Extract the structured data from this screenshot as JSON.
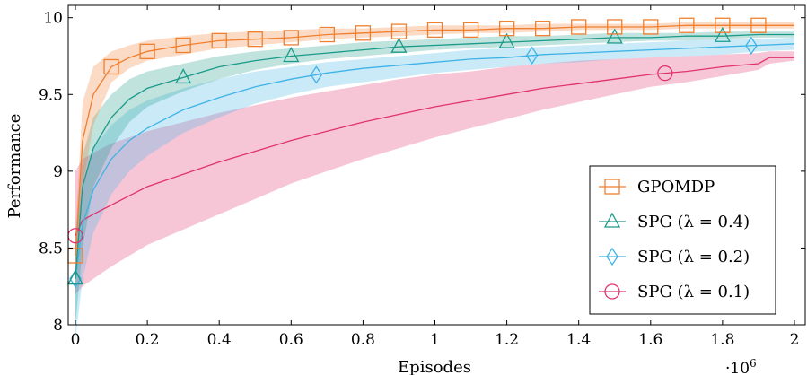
{
  "chart_data": {
    "type": "line",
    "title": "",
    "xlabel": "Episodes",
    "ylabel": "Performance",
    "x_multiplier_label": "·10",
    "x_multiplier_exp": "6",
    "xlim": [
      -0.02,
      2.03
    ],
    "ylim": [
      8,
      10.08
    ],
    "xticks": [
      0,
      0.2,
      0.4,
      0.6,
      0.8,
      1,
      1.2,
      1.4,
      1.6,
      1.8,
      2
    ],
    "xtick_labels": [
      "0",
      "0.2",
      "0.4",
      "0.6",
      "0.8",
      "1",
      "1.2",
      "1.4",
      "1.6",
      "1.8",
      "2"
    ],
    "yticks": [
      8,
      8.5,
      9,
      9.5,
      10
    ],
    "ytick_labels": [
      "8",
      "8.5",
      "9",
      "9.5",
      "10"
    ],
    "grid": false,
    "legend_position": "bottom-right",
    "series": [
      {
        "name": "GPOMDP",
        "color": "#f07f2f",
        "marker": "square",
        "x": [
          0,
          0.02,
          0.05,
          0.1,
          0.15,
          0.2,
          0.3,
          0.4,
          0.5,
          0.6,
          0.7,
          0.8,
          0.9,
          1.0,
          1.1,
          1.2,
          1.3,
          1.4,
          1.5,
          1.6,
          1.7,
          1.8,
          1.9,
          2.0
        ],
        "y": [
          8.45,
          9.2,
          9.5,
          9.68,
          9.74,
          9.78,
          9.82,
          9.85,
          9.86,
          9.87,
          9.89,
          9.9,
          9.91,
          9.92,
          9.92,
          9.93,
          9.93,
          9.94,
          9.94,
          9.94,
          9.95,
          9.95,
          9.95,
          9.95
        ],
        "lower": [
          8.3,
          8.9,
          9.3,
          9.58,
          9.67,
          9.72,
          9.76,
          9.8,
          9.82,
          9.84,
          9.86,
          9.87,
          9.88,
          9.89,
          9.9,
          9.9,
          9.91,
          9.92,
          9.92,
          9.92,
          9.93,
          9.93,
          9.93,
          9.93
        ],
        "upper": [
          8.6,
          9.45,
          9.68,
          9.78,
          9.82,
          9.85,
          9.88,
          9.9,
          9.91,
          9.92,
          9.93,
          9.93,
          9.94,
          9.95,
          9.95,
          9.95,
          9.96,
          9.96,
          9.96,
          9.96,
          9.97,
          9.97,
          9.97,
          9.97
        ],
        "markers_x": [
          0,
          0.1,
          0.2,
          0.3,
          0.4,
          0.5,
          0.6,
          0.7,
          0.8,
          0.9,
          1.0,
          1.1,
          1.2,
          1.3,
          1.4,
          1.5,
          1.6,
          1.7,
          1.8,
          1.9
        ]
      },
      {
        "name": "SPG (λ = 0.4)",
        "color": "#1b9a8a",
        "marker": "triangle",
        "x": [
          0,
          0.02,
          0.05,
          0.1,
          0.15,
          0.2,
          0.3,
          0.4,
          0.5,
          0.6,
          0.7,
          0.8,
          0.9,
          1.0,
          1.1,
          1.2,
          1.3,
          1.4,
          1.5,
          1.6,
          1.7,
          1.8,
          1.9,
          2.0
        ],
        "y": [
          8.3,
          8.9,
          9.15,
          9.35,
          9.47,
          9.54,
          9.61,
          9.68,
          9.72,
          9.75,
          9.77,
          9.79,
          9.81,
          9.82,
          9.83,
          9.84,
          9.85,
          9.86,
          9.87,
          9.87,
          9.88,
          9.88,
          9.89,
          9.89
        ],
        "lower": [
          8.0,
          8.5,
          8.9,
          9.15,
          9.32,
          9.42,
          9.52,
          9.6,
          9.66,
          9.7,
          9.73,
          9.75,
          9.77,
          9.79,
          9.8,
          9.81,
          9.82,
          9.83,
          9.84,
          9.85,
          9.85,
          9.86,
          9.87,
          9.87
        ],
        "upper": [
          8.5,
          9.1,
          9.35,
          9.5,
          9.6,
          9.65,
          9.7,
          9.75,
          9.78,
          9.8,
          9.82,
          9.84,
          9.85,
          9.86,
          9.87,
          9.88,
          9.88,
          9.89,
          9.9,
          9.9,
          9.9,
          9.91,
          9.91,
          9.91
        ],
        "markers_x": [
          0,
          0.3,
          0.6,
          0.9,
          1.2,
          1.5,
          1.8
        ]
      },
      {
        "name": "SPG (λ = 0.2)",
        "color": "#3fb3e6",
        "marker": "diamond",
        "x": [
          0,
          0.02,
          0.05,
          0.1,
          0.15,
          0.2,
          0.3,
          0.4,
          0.5,
          0.6,
          0.7,
          0.8,
          0.9,
          1.0,
          1.1,
          1.2,
          1.3,
          1.4,
          1.5,
          1.6,
          1.7,
          1.8,
          1.9,
          2.0
        ],
        "y": [
          8.3,
          8.65,
          8.88,
          9.08,
          9.2,
          9.28,
          9.4,
          9.48,
          9.55,
          9.6,
          9.64,
          9.67,
          9.69,
          9.71,
          9.73,
          9.74,
          9.76,
          9.77,
          9.78,
          9.79,
          9.8,
          9.81,
          9.82,
          9.83
        ],
        "lower": [
          7.9,
          8.3,
          8.6,
          8.85,
          9.0,
          9.1,
          9.25,
          9.35,
          9.44,
          9.5,
          9.55,
          9.58,
          9.61,
          9.64,
          9.66,
          9.68,
          9.7,
          9.71,
          9.73,
          9.74,
          9.75,
          9.76,
          9.78,
          9.79
        ],
        "upper": [
          8.6,
          8.9,
          9.15,
          9.3,
          9.4,
          9.46,
          9.54,
          9.6,
          9.65,
          9.68,
          9.71,
          9.73,
          9.75,
          9.77,
          9.79,
          9.8,
          9.81,
          9.82,
          9.83,
          9.84,
          9.85,
          9.86,
          9.86,
          9.87
        ],
        "markers_x": [
          0,
          0.67,
          1.27,
          1.88
        ]
      },
      {
        "name": "SPG (λ = 0.1)",
        "color": "#e0336f",
        "marker": "circle",
        "x": [
          0,
          0.02,
          0.05,
          0.1,
          0.15,
          0.2,
          0.3,
          0.4,
          0.5,
          0.6,
          0.7,
          0.8,
          0.9,
          1.0,
          1.1,
          1.2,
          1.3,
          1.4,
          1.5,
          1.6,
          1.7,
          1.8,
          1.9,
          1.93,
          2.0
        ],
        "y": [
          8.58,
          8.68,
          8.72,
          8.78,
          8.84,
          8.9,
          8.98,
          9.06,
          9.13,
          9.2,
          9.26,
          9.32,
          9.37,
          9.42,
          9.46,
          9.5,
          9.54,
          9.57,
          9.6,
          9.63,
          9.65,
          9.68,
          9.7,
          9.74,
          9.74
        ],
        "lower": [
          8.2,
          8.25,
          8.3,
          8.38,
          8.45,
          8.52,
          8.62,
          8.72,
          8.82,
          8.92,
          9.0,
          9.08,
          9.15,
          9.22,
          9.28,
          9.34,
          9.4,
          9.45,
          9.5,
          9.55,
          9.58,
          9.62,
          9.66,
          9.7,
          9.72
        ],
        "upper": [
          9.0,
          9.08,
          9.12,
          9.18,
          9.22,
          9.26,
          9.32,
          9.38,
          9.43,
          9.48,
          9.52,
          9.56,
          9.6,
          9.63,
          9.65,
          9.68,
          9.7,
          9.72,
          9.73,
          9.74,
          9.75,
          9.76,
          9.77,
          9.78,
          9.78
        ],
        "markers_x": [
          0,
          1.64
        ]
      }
    ]
  }
}
